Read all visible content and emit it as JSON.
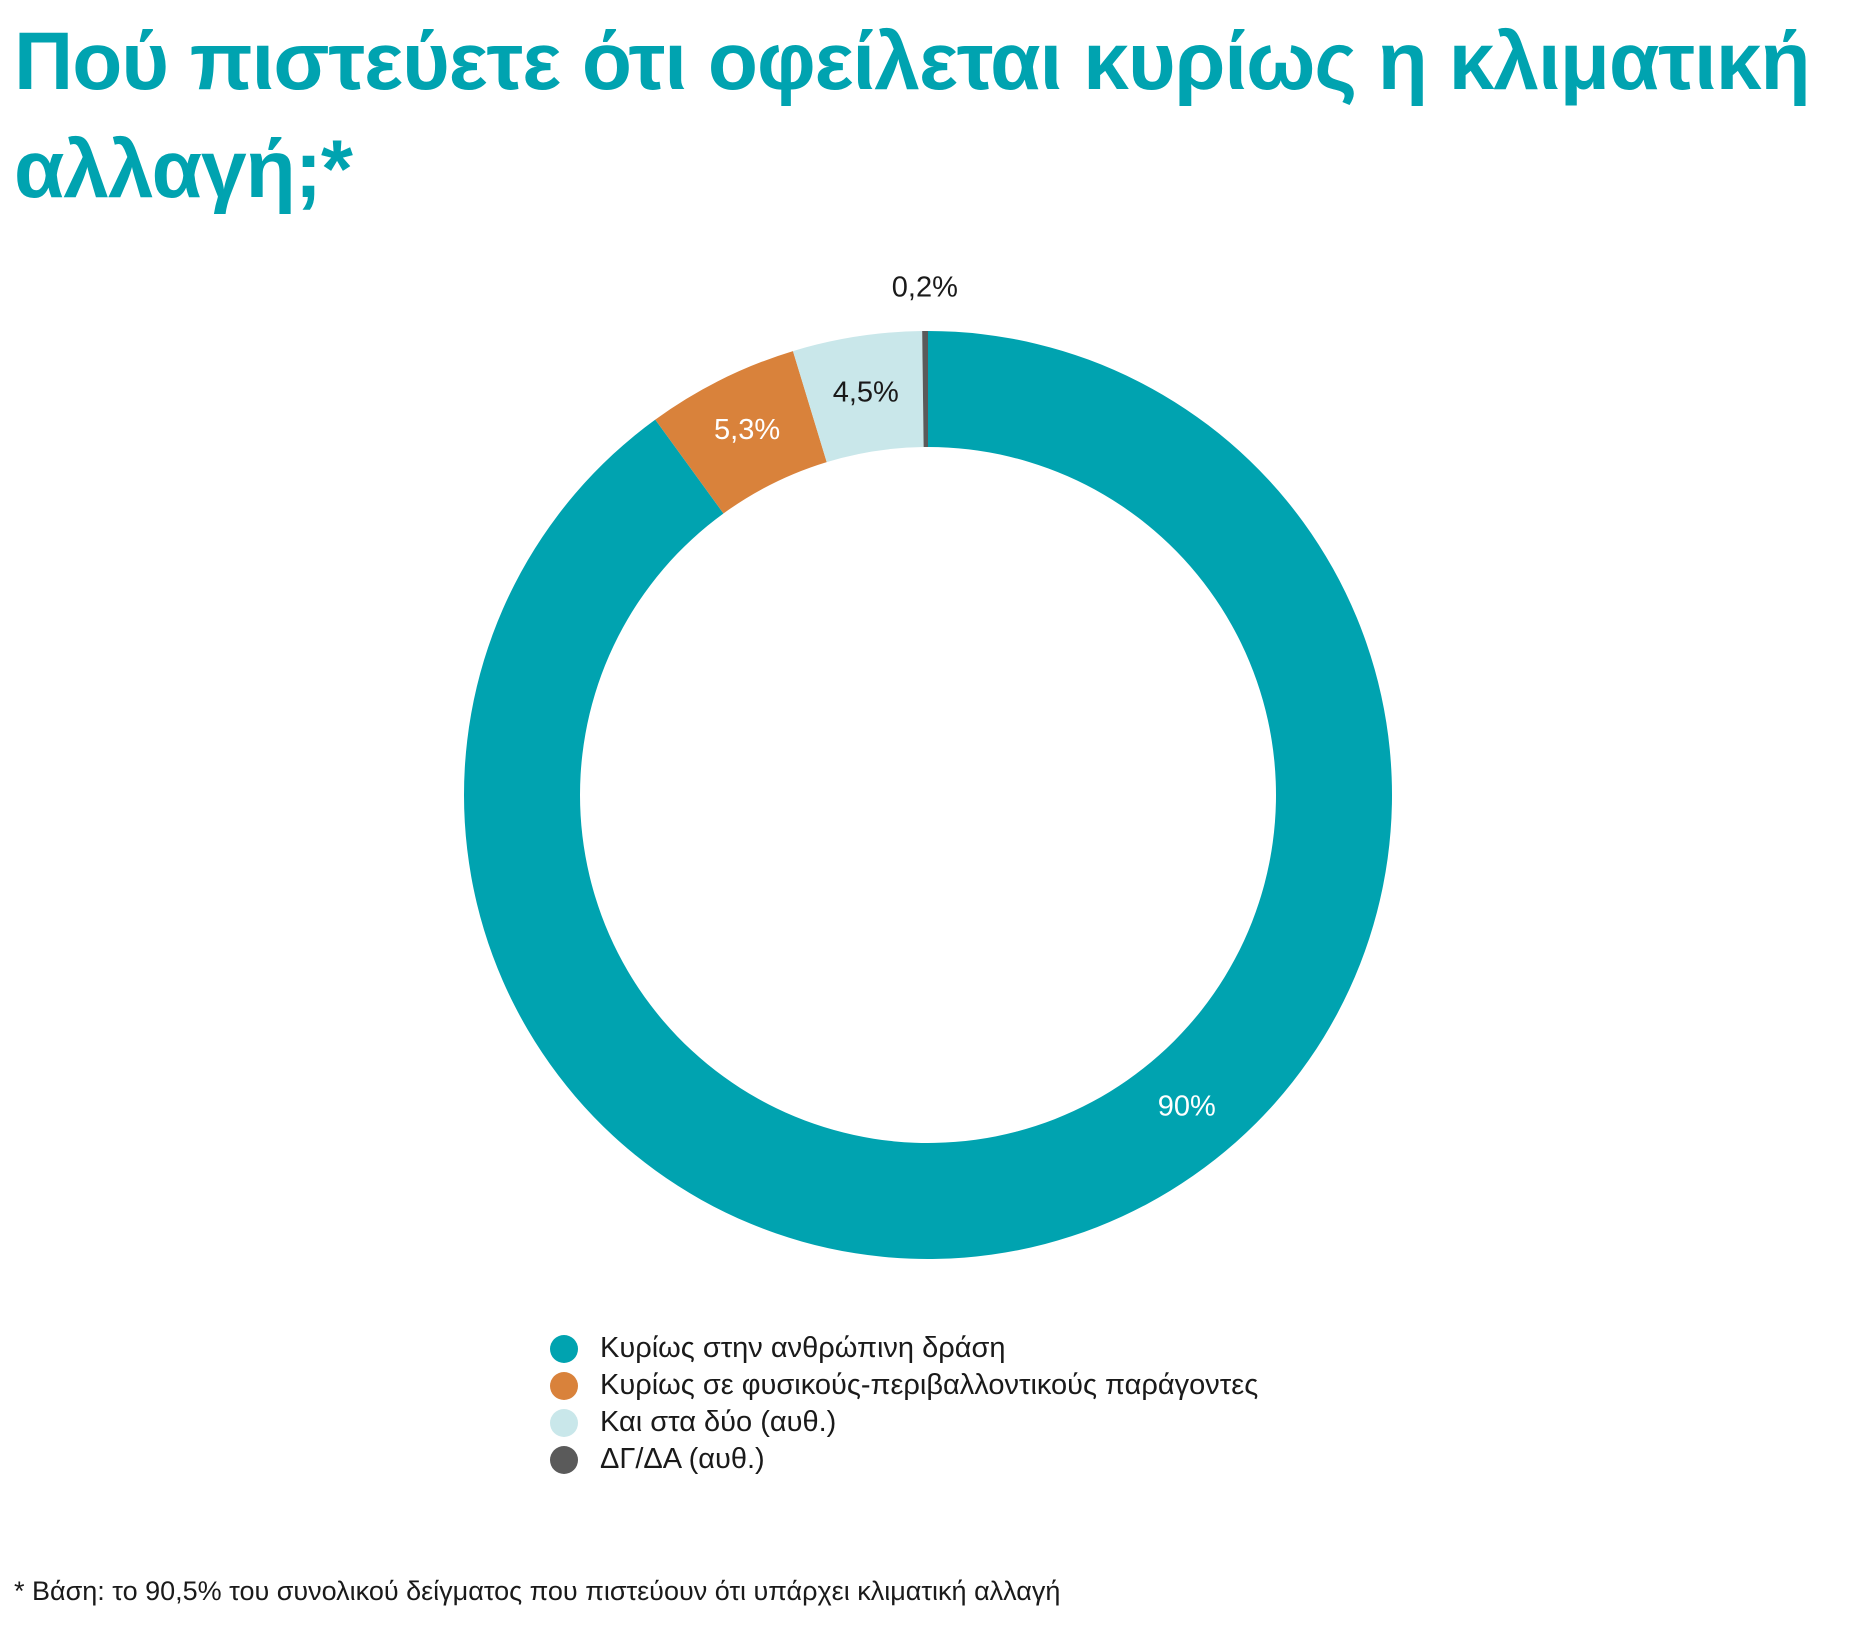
{
  "title": "Πού πιστεύετε ότι οφείλεται κυρίως η κλιματική αλλαγή;*",
  "footnote": "* Βάση: το 90,5% του συνολικού δείγματος που πιστεύουν ότι υπάρχει κλιματική αλλαγή",
  "chart_data": {
    "type": "pie",
    "variant": "donut",
    "slices": [
      {
        "label": "Κυρίως στην ανθρώπινη δράση",
        "value": 90,
        "display": "90%",
        "color": "#00a3b0",
        "label_color": "#ffffff"
      },
      {
        "label": "Κυρίως σε φυσικούς-περιβαλλοντικούς παράγοντες",
        "value": 5.3,
        "display": "5,3%",
        "color": "#d9823b",
        "label_color": "#ffffff"
      },
      {
        "label": "Και στα δύο (αυθ.)",
        "value": 4.5,
        "display": "4,5%",
        "color": "#c9e7ea",
        "label_color": "#1a1a1a"
      },
      {
        "label": "ΔΓ/ΔΑ (αυθ.)",
        "value": 0.2,
        "display": "0,2%",
        "color": "#5a5a5a",
        "label_color": "#1a1a1a"
      }
    ],
    "legend_position": "bottom"
  }
}
